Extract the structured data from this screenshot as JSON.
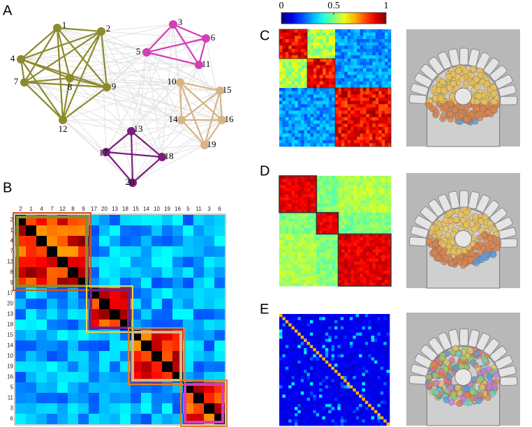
{
  "panel_labels": [
    "A",
    "B",
    "C",
    "D",
    "E"
  ],
  "graph": {
    "nodes": [
      "1",
      "2",
      "3",
      "4",
      "5",
      "6",
      "7",
      "8",
      "9",
      "10",
      "11",
      "12",
      "13",
      "14",
      "15",
      "16",
      "17",
      "18",
      "19",
      "20"
    ]
  },
  "matrix_order": [
    "2",
    "1",
    "4",
    "7",
    "12",
    "8",
    "9",
    "17",
    "20",
    "13",
    "18",
    "15",
    "14",
    "10",
    "19",
    "16",
    "5",
    "11",
    "3",
    "6"
  ],
  "colorbar": {
    "ticks": [
      0,
      0.5,
      1
    ]
  }
}
